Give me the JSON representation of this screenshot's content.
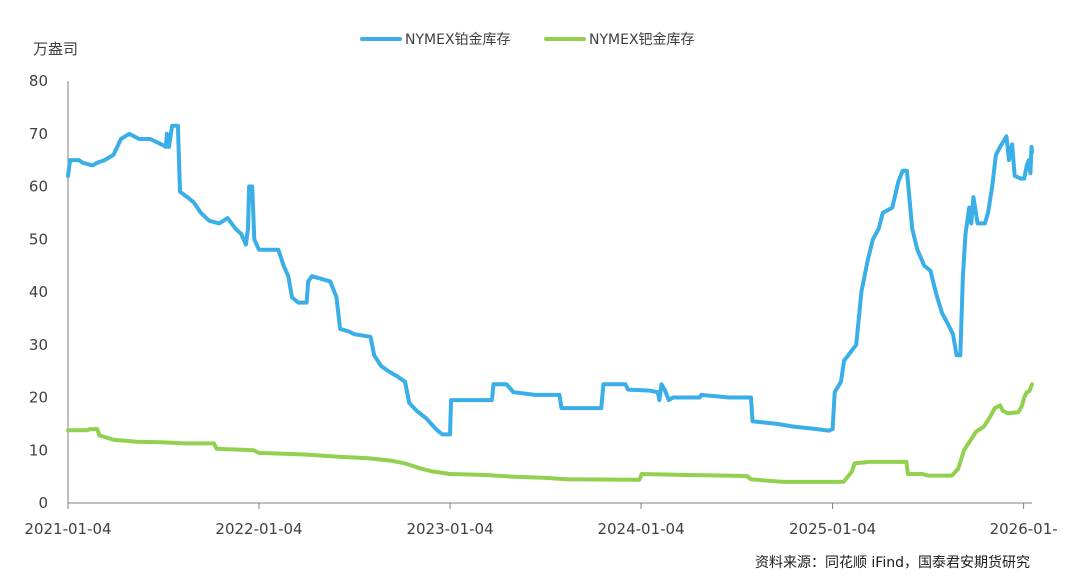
{
  "chart_data": {
    "type": "line",
    "unit_label": "万盎司",
    "source_note": "资料来源：同花顺 iFind，国泰君安期货研究",
    "ylim": [
      0,
      80
    ],
    "y_ticks": [
      "0",
      "10",
      "20",
      "30",
      "40",
      "50",
      "60",
      "70",
      "80"
    ],
    "x_ticks": [
      "2021-01-04",
      "2022-01-04",
      "2023-01-04",
      "2024-01-04",
      "2025-01-04",
      "2026-01-"
    ],
    "x_range": [
      "2021-01-04",
      "2026-01-20"
    ],
    "grid": false,
    "legend_position": "top-center",
    "series": [
      {
        "name": "NYMEX铂金库存",
        "color": "#3aaee6",
        "points": [
          [
            "2021-01-04",
            62
          ],
          [
            "2021-01-08",
            65
          ],
          [
            "2021-01-25",
            65
          ],
          [
            "2021-02-01",
            64.5
          ],
          [
            "2021-02-20",
            64
          ],
          [
            "2021-03-01",
            64.5
          ],
          [
            "2021-03-15",
            65
          ],
          [
            "2021-04-01",
            66
          ],
          [
            "2021-04-15",
            69
          ],
          [
            "2021-05-01",
            70
          ],
          [
            "2021-05-20",
            69
          ],
          [
            "2021-06-10",
            69
          ],
          [
            "2021-07-01",
            68
          ],
          [
            "2021-07-10",
            67.5
          ],
          [
            "2021-07-12",
            70
          ],
          [
            "2021-07-16",
            67.5
          ],
          [
            "2021-07-22",
            71.5
          ],
          [
            "2021-08-02",
            71.5
          ],
          [
            "2021-08-06",
            59
          ],
          [
            "2021-08-20",
            58
          ],
          [
            "2021-09-01",
            57
          ],
          [
            "2021-09-15",
            55
          ],
          [
            "2021-10-01",
            53.5
          ],
          [
            "2021-10-20",
            53
          ],
          [
            "2021-11-05",
            54
          ],
          [
            "2021-11-20",
            52
          ],
          [
            "2021-12-01",
            51
          ],
          [
            "2021-12-10",
            49
          ],
          [
            "2021-12-14",
            52
          ],
          [
            "2021-12-16",
            60
          ],
          [
            "2021-12-22",
            60
          ],
          [
            "2021-12-26",
            50
          ],
          [
            "2022-01-04",
            48
          ],
          [
            "2022-02-10",
            48
          ],
          [
            "2022-02-20",
            45
          ],
          [
            "2022-03-01",
            43
          ],
          [
            "2022-03-08",
            39
          ],
          [
            "2022-03-20",
            38
          ],
          [
            "2022-04-05",
            38
          ],
          [
            "2022-04-08",
            42
          ],
          [
            "2022-04-15",
            43
          ],
          [
            "2022-05-20",
            42
          ],
          [
            "2022-06-01",
            39
          ],
          [
            "2022-06-08",
            33
          ],
          [
            "2022-06-25",
            32.5
          ],
          [
            "2022-07-05",
            32
          ],
          [
            "2022-08-05",
            31.5
          ],
          [
            "2022-08-12",
            28
          ],
          [
            "2022-08-25",
            26
          ],
          [
            "2022-09-08",
            25
          ],
          [
            "2022-09-25",
            24
          ],
          [
            "2022-10-10",
            23
          ],
          [
            "2022-10-18",
            19
          ],
          [
            "2022-11-01",
            17.5
          ],
          [
            "2022-11-20",
            16
          ],
          [
            "2022-12-08",
            14
          ],
          [
            "2022-12-20",
            13
          ],
          [
            "2023-01-04",
            13
          ],
          [
            "2023-01-06",
            19.5
          ],
          [
            "2023-02-15",
            19.5
          ],
          [
            "2023-03-25",
            19.5
          ],
          [
            "2023-03-28",
            22.5
          ],
          [
            "2023-04-22",
            22.5
          ],
          [
            "2023-05-05",
            21
          ],
          [
            "2023-06-15",
            20.5
          ],
          [
            "2023-08-01",
            20.5
          ],
          [
            "2023-08-05",
            18
          ],
          [
            "2023-09-15",
            18
          ],
          [
            "2023-10-20",
            18
          ],
          [
            "2023-10-24",
            22.5
          ],
          [
            "2023-12-05",
            22.5
          ],
          [
            "2023-12-10",
            21.5
          ],
          [
            "2024-01-20",
            21.3
          ],
          [
            "2024-02-05",
            21
          ],
          [
            "2024-02-08",
            19.5
          ],
          [
            "2024-02-12",
            22.5
          ],
          [
            "2024-02-18",
            21.5
          ],
          [
            "2024-02-26",
            19.5
          ],
          [
            "2024-03-05",
            20
          ],
          [
            "2024-04-25",
            20
          ],
          [
            "2024-04-28",
            20.5
          ],
          [
            "2024-06-20",
            20
          ],
          [
            "2024-08-01",
            20
          ],
          [
            "2024-08-04",
            15.5
          ],
          [
            "2024-09-20",
            15
          ],
          [
            "2024-10-20",
            14.5
          ],
          [
            "2024-12-05",
            14
          ],
          [
            "2024-12-28",
            13.7
          ],
          [
            "2025-01-04",
            14
          ],
          [
            "2025-01-08",
            21
          ],
          [
            "2025-01-20",
            23
          ],
          [
            "2025-01-26",
            27
          ],
          [
            "2025-02-18",
            30
          ],
          [
            "2025-02-28",
            40
          ],
          [
            "2025-03-12",
            46
          ],
          [
            "2025-03-22",
            50
          ],
          [
            "2025-04-02",
            52
          ],
          [
            "2025-04-10",
            55
          ],
          [
            "2025-04-28",
            56
          ],
          [
            "2025-05-10",
            61
          ],
          [
            "2025-05-18",
            63
          ],
          [
            "2025-05-26",
            63
          ],
          [
            "2025-06-05",
            52
          ],
          [
            "2025-06-15",
            48
          ],
          [
            "2025-06-28",
            45
          ],
          [
            "2025-07-10",
            44
          ],
          [
            "2025-07-20",
            40
          ],
          [
            "2025-08-01",
            36
          ],
          [
            "2025-08-12",
            34
          ],
          [
            "2025-08-22",
            32
          ],
          [
            "2025-08-29",
            28
          ],
          [
            "2025-09-05",
            28
          ],
          [
            "2025-09-10",
            43
          ],
          [
            "2025-09-15",
            51
          ],
          [
            "2025-09-22",
            56
          ],
          [
            "2025-09-26",
            53
          ],
          [
            "2025-09-30",
            58
          ],
          [
            "2025-10-08",
            53
          ],
          [
            "2025-10-22",
            53
          ],
          [
            "2025-10-28",
            55
          ],
          [
            "2025-11-05",
            60
          ],
          [
            "2025-11-12",
            66
          ],
          [
            "2025-11-20",
            67.5
          ],
          [
            "2025-12-02",
            69.5
          ],
          [
            "2025-12-07",
            65
          ],
          [
            "2025-12-13",
            68
          ],
          [
            "2025-12-18",
            62
          ],
          [
            "2025-12-30",
            61.5
          ],
          [
            "2026-01-05",
            61.5
          ],
          [
            "2026-01-10",
            64
          ],
          [
            "2026-01-14",
            65
          ],
          [
            "2026-01-17",
            62.5
          ],
          [
            "2026-01-19",
            67.5
          ],
          [
            "2026-01-20",
            66.5
          ]
        ]
      },
      {
        "name": "NYMEX钯金库存",
        "color": "#92d050",
        "points": [
          [
            "2021-01-04",
            13.8
          ],
          [
            "2021-02-10",
            13.8
          ],
          [
            "2021-02-15",
            14
          ],
          [
            "2021-03-01",
            14
          ],
          [
            "2021-03-05",
            12.8
          ],
          [
            "2021-04-01",
            12
          ],
          [
            "2021-05-15",
            11.6
          ],
          [
            "2021-07-01",
            11.5
          ],
          [
            "2021-08-15",
            11.3
          ],
          [
            "2021-10-10",
            11.3
          ],
          [
            "2021-10-15",
            10.3
          ],
          [
            "2021-12-25",
            10
          ],
          [
            "2022-01-04",
            9.5
          ],
          [
            "2022-04-01",
            9.2
          ],
          [
            "2022-06-01",
            8.8
          ],
          [
            "2022-08-01",
            8.5
          ],
          [
            "2022-09-15",
            8
          ],
          [
            "2022-10-10",
            7.5
          ],
          [
            "2022-11-10",
            6.5
          ],
          [
            "2022-12-01",
            6
          ],
          [
            "2023-01-04",
            5.5
          ],
          [
            "2023-03-15",
            5.3
          ],
          [
            "2023-05-01",
            5
          ],
          [
            "2023-07-01",
            4.8
          ],
          [
            "2023-08-15",
            4.5
          ],
          [
            "2023-12-20",
            4.4
          ],
          [
            "2024-01-01",
            4.4
          ],
          [
            "2024-01-05",
            5.5
          ],
          [
            "2024-04-01",
            5.3
          ],
          [
            "2024-06-15",
            5.2
          ],
          [
            "2024-07-25",
            5.1
          ],
          [
            "2024-08-01",
            4.5
          ],
          [
            "2024-10-01",
            4
          ],
          [
            "2024-12-15",
            4
          ],
          [
            "2025-01-04",
            4
          ],
          [
            "2025-01-25",
            4
          ],
          [
            "2025-02-10",
            6
          ],
          [
            "2025-02-15",
            7.5
          ],
          [
            "2025-03-15",
            7.8
          ],
          [
            "2025-05-25",
            7.8
          ],
          [
            "2025-05-28",
            5.5
          ],
          [
            "2025-06-25",
            5.5
          ],
          [
            "2025-07-05",
            5.2
          ],
          [
            "2025-08-20",
            5.2
          ],
          [
            "2025-09-01",
            6.5
          ],
          [
            "2025-09-12",
            10
          ],
          [
            "2025-09-25",
            12
          ],
          [
            "2025-10-05",
            13.5
          ],
          [
            "2025-10-20",
            14.5
          ],
          [
            "2025-10-30",
            16
          ],
          [
            "2025-11-10",
            18
          ],
          [
            "2025-11-20",
            18.5
          ],
          [
            "2025-11-25",
            17.5
          ],
          [
            "2025-12-05",
            17
          ],
          [
            "2025-12-25",
            17.2
          ],
          [
            "2026-01-01",
            18.5
          ],
          [
            "2026-01-05",
            20
          ],
          [
            "2026-01-10",
            21
          ],
          [
            "2026-01-15",
            21.2
          ],
          [
            "2026-01-18",
            22
          ],
          [
            "2026-01-20",
            22.5
          ]
        ]
      }
    ]
  }
}
